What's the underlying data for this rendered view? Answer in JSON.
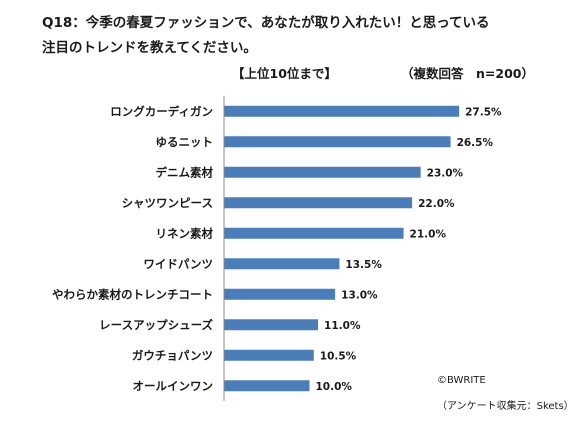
{
  "question": {
    "line1": "Q18：今季の春夏ファッションで、あなたが取り入れたい！と思っている",
    "line2": "注目のトレンドを教えてください。"
  },
  "subtitle": "【上位10位まで】",
  "note": "（複数回答　n=200）",
  "credits": {
    "copyright": "©BWRITE",
    "source": "（アンケート収集元：Skets）"
  },
  "colors": {
    "bar": "#4a7ebb",
    "axis": "#888888",
    "text": "#1a1a1a"
  },
  "chart_data": {
    "type": "bar",
    "orientation": "horizontal",
    "title": "",
    "xlabel": "",
    "ylabel": "",
    "grid": false,
    "legend": "none",
    "categories": [
      "ロングカーディガン",
      "ゆるニット",
      "デニム素材",
      "シャツワンピース",
      "リネン素材",
      "ワイドパンツ",
      "やわらか素材のトレンチコート",
      "レースアップシューズ",
      "ガウチョパンツ",
      "オールインワン"
    ],
    "values": [
      27.5,
      26.5,
      23.0,
      22.0,
      21.0,
      13.5,
      13.0,
      11.0,
      10.5,
      10.0
    ],
    "value_labels": [
      "27.5%",
      "26.5%",
      "23.0%",
      "22.0%",
      "21.0%",
      "13.5%",
      "13.0%",
      "11.0%",
      "10.5%",
      "10.0%"
    ],
    "unit": "%",
    "xlim": [
      0,
      30
    ]
  }
}
